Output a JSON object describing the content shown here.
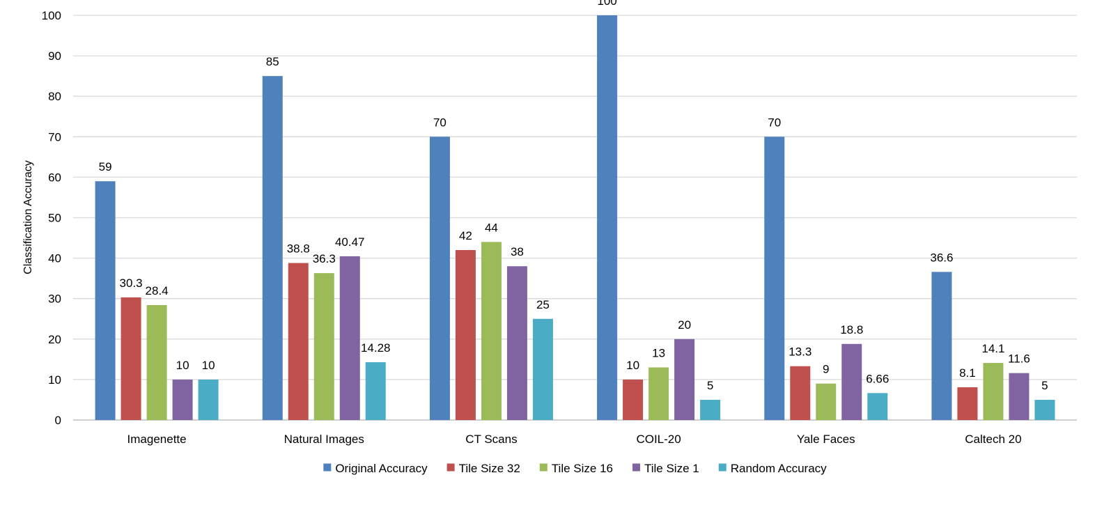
{
  "chart_data": {
    "type": "bar",
    "title": "",
    "xlabel": "",
    "ylabel": "Classification Accuracy",
    "ylim": [
      0,
      100
    ],
    "yticks": [
      0,
      10,
      20,
      30,
      40,
      50,
      60,
      70,
      80,
      90,
      100
    ],
    "grid": true,
    "legend_position": "bottom",
    "categories": [
      "Imagenette",
      "Natural Images",
      "CT Scans",
      "COIL-20",
      "Yale Faces",
      "Caltech 20"
    ],
    "series": [
      {
        "name": "Original Accuracy",
        "color": "#4F81BD",
        "values": [
          59,
          85,
          70,
          100,
          70,
          36.6
        ],
        "labels": [
          "59",
          "85",
          "70",
          "100",
          "70",
          "36.6"
        ]
      },
      {
        "name": "Tile Size 32",
        "color": "#C0504D",
        "values": [
          30.3,
          38.8,
          42,
          10,
          13.3,
          8.1
        ],
        "labels": [
          "30.3",
          "38.8",
          "42",
          "10",
          "13.3",
          "8.1"
        ]
      },
      {
        "name": "Tile Size 16",
        "color": "#9BBB59",
        "values": [
          28.4,
          36.3,
          44,
          13,
          9,
          14.1
        ],
        "labels": [
          "28.4",
          "36.3",
          "44",
          "13",
          "9",
          "14.1"
        ]
      },
      {
        "name": "Tile Size 1",
        "color": "#8064A2",
        "values": [
          10,
          40.47,
          38,
          20,
          18.8,
          11.6
        ],
        "labels": [
          "10",
          "40.47",
          "38",
          "20",
          "18.8",
          "11.6"
        ]
      },
      {
        "name": "Random Accuracy",
        "color": "#4BACC6",
        "values": [
          10,
          14.28,
          25,
          5,
          6.66,
          5
        ],
        "labels": [
          "10",
          "14.28",
          "25",
          "5",
          "6.66",
          "5"
        ]
      }
    ]
  }
}
